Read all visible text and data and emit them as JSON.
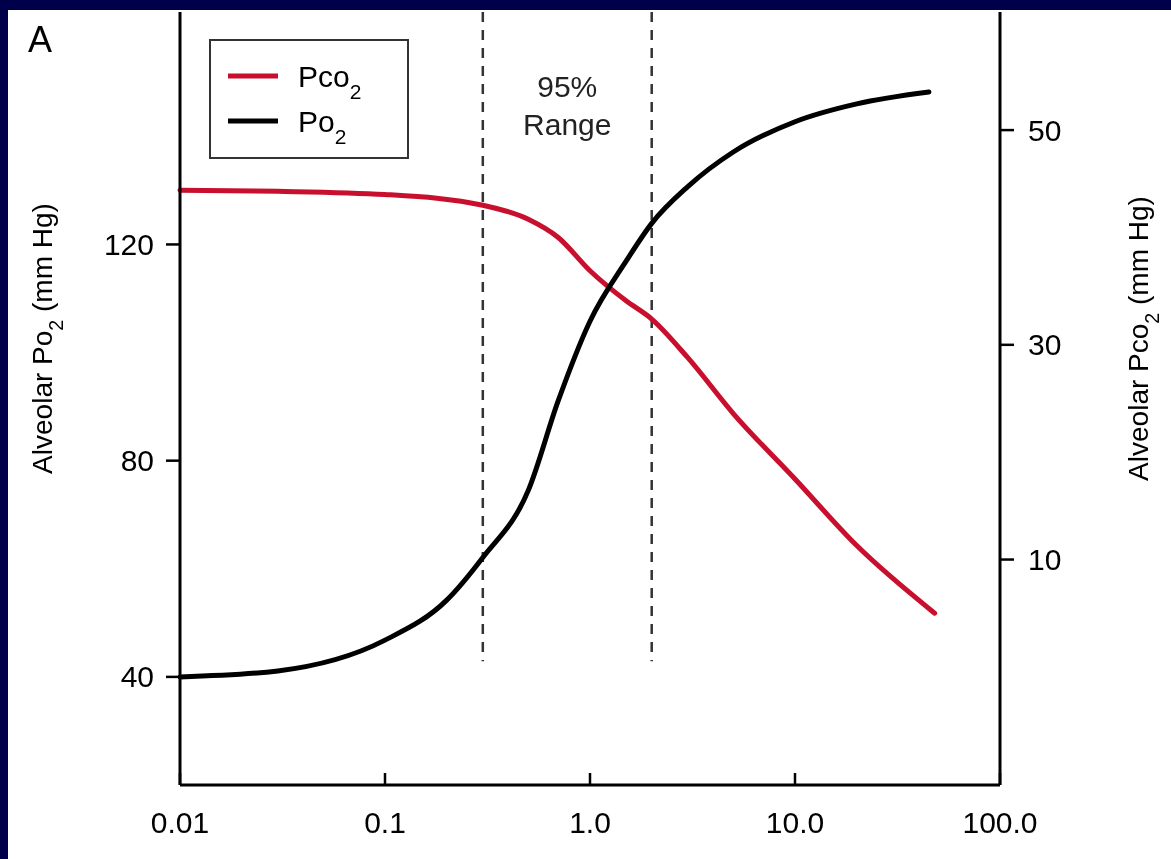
{
  "chart_data": {
    "type": "line",
    "title": "A",
    "ylabel": "Alveolar Po$_{2}$ (mm Hg)",
    "y2label": "Alveolar Pco$_{2}$ (mm Hg)",
    "x": [
      0.01,
      0.03,
      0.1,
      0.2,
      0.3,
      0.5,
      0.7,
      1.0,
      1.5,
      2.0,
      3,
      5,
      10,
      20,
      45
    ],
    "series": [
      {
        "name": "Pco$_{2}$",
        "color": "#c8102e",
        "axis": "y2",
        "x": [
          0.01,
          0.03,
          0.1,
          0.3,
          0.5,
          0.7,
          1.0,
          1.5,
          2.0,
          3,
          5,
          10,
          20,
          48
        ],
        "values": [
          44.4,
          44.3,
          44.0,
          43.0,
          41.7,
          40.0,
          36.9,
          34.1,
          32.4,
          28.8,
          23.6,
          17.5,
          11.3,
          5.0
        ]
      },
      {
        "name": "Po$_{2}$",
        "color": "#000000",
        "axis": "y",
        "values": [
          40,
          41.1,
          46.8,
          54.2,
          62.1,
          74.5,
          91.1,
          105.8,
          116.9,
          123.9,
          130.7,
          137.1,
          142.7,
          146,
          148.2
        ]
      }
    ],
    "log": "x",
    "xlim": [
      0.01,
      100
    ],
    "xticks": [
      0.01,
      0.1,
      {
        "value": 1,
        "label": "1.0"
      },
      {
        "value": 10,
        "label": "10.0"
      },
      {
        "value": 100,
        "label": "100.0"
      }
    ],
    "ylim": [
      20,
      163
    ],
    "yticks": [
      40,
      80,
      120
    ],
    "y2lim": [
      -11,
      61
    ],
    "y2ticks": [
      10,
      30,
      50
    ],
    "ref_lines": [
      {
        "axis": "x",
        "value": 0.3,
        "line_style": "dashed"
      },
      {
        "axis": "x",
        "value": 2.0,
        "line_style": "dashed"
      }
    ],
    "annotations": [
      "95% Range"
    ],
    "legend": "top left",
    "grid": false,
    "marker": "none",
    "line_style": "solid"
  }
}
